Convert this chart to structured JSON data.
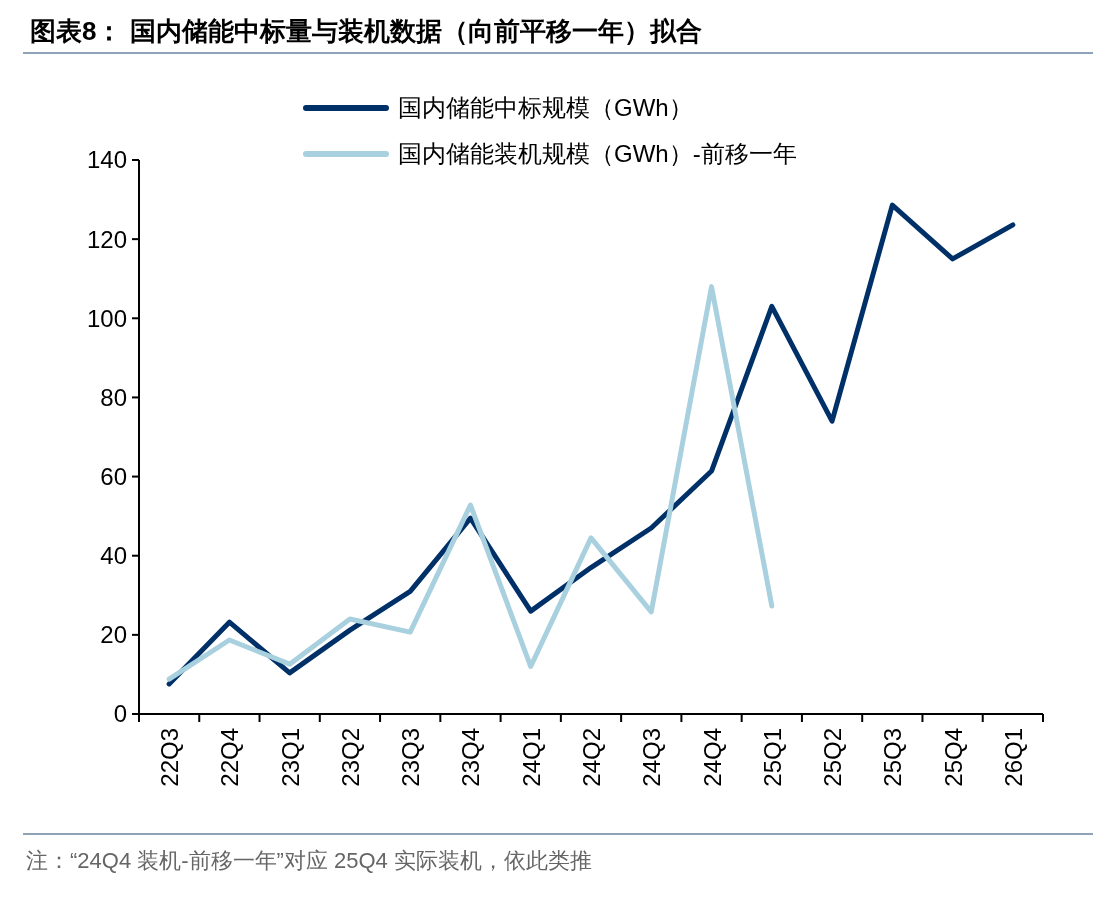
{
  "chart_data": {
    "type": "line",
    "title": "图表8： 国内储能中标量与装机数据（向前平移一年）拟合",
    "categories": [
      "22Q3",
      "22Q4",
      "23Q1",
      "23Q2",
      "23Q3",
      "23Q4",
      "24Q1",
      "24Q2",
      "24Q3",
      "24Q4",
      "25Q1",
      "25Q2",
      "25Q3",
      "25Q4",
      "26Q1"
    ],
    "series": [
      {
        "name": "国内储能中标规模（GWh）",
        "color": "#003068",
        "values": [
          7.6,
          23.2,
          10.4,
          21.2,
          31,
          49.5,
          26,
          37,
          47,
          61.4,
          103,
          74,
          128.6,
          115,
          123.6
        ]
      },
      {
        "name": "国内储能装机规模（GWh）-前移一年",
        "color": "#a8d0de",
        "values": [
          8.8,
          18.7,
          12.6,
          24,
          20.7,
          52.8,
          12,
          44.5,
          25.8,
          108,
          27.3,
          null,
          null,
          null,
          null
        ]
      }
    ],
    "ylim": [
      0,
      140
    ],
    "yticks": [
      0,
      20,
      40,
      60,
      80,
      100,
      120,
      140
    ],
    "grid": false,
    "legend": "top",
    "marker": "none",
    "line_style": "solid",
    "annotations": [
      "注：“24Q4 装机-前移一年”对应 25Q4 实际装机，依此类推"
    ]
  }
}
